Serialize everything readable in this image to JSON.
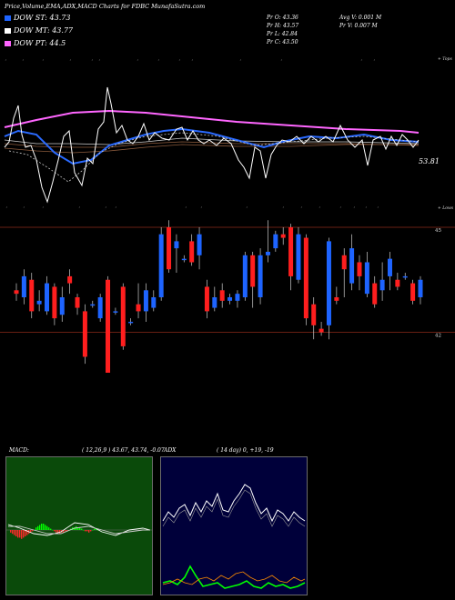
{
  "title": "Price,Volume,EMA,ADX,MACD Charts for FDBC MunafaSutra.com",
  "legend": [
    {
      "label": "DOW ST: 43.73",
      "color": "#1e64ff"
    },
    {
      "label": "DOW MT: 43.77",
      "color": "#ffffff"
    },
    {
      "label": "DOW PT: 44.5",
      "color": "#ff64ff"
    }
  ],
  "stats": {
    "pr_o": "Pr  O: 43.36",
    "pr_h": "Pr  H: 43.57",
    "pr_l": "Pr  L: 42.84",
    "pr_c": "Pr  C: 43.50",
    "avg_v": "Avg V: 0.001 M",
    "pr_v": "Pr  V: 0.007 M"
  },
  "top_chart": {
    "upper_label": "+ Tops",
    "lower_label": "+ Lows",
    "price_label": "53.81",
    "colors": {
      "price": "#ffffff",
      "ema_short": "#2a6aff",
      "ema_mid": "#8b5a3c",
      "ema_long": "#ff66ff",
      "ema_other": "#cccccc"
    }
  },
  "candle_chart": {
    "levels": [
      {
        "value": 45,
        "label": "45"
      },
      {
        "value": 42,
        "label": "42"
      },
      {
        "value": 40,
        "label": "40"
      }
    ],
    "up_color": "#1e64ff",
    "down_color": "#ff1e1e",
    "candles": [
      {
        "o": 43.2,
        "c": 43.1,
        "h": 43.4,
        "l": 42.9
      },
      {
        "o": 43.0,
        "c": 43.6,
        "h": 43.8,
        "l": 42.8
      },
      {
        "o": 43.5,
        "c": 42.6,
        "h": 43.7,
        "l": 42.4
      },
      {
        "o": 42.8,
        "c": 42.9,
        "h": 43.2,
        "l": 42.6
      },
      {
        "o": 42.6,
        "c": 43.4,
        "h": 43.6,
        "l": 42.5
      },
      {
        "o": 43.3,
        "c": 42.4,
        "h": 43.4,
        "l": 42.2
      },
      {
        "o": 42.5,
        "c": 43.0,
        "h": 43.3,
        "l": 42.3
      },
      {
        "o": 43.6,
        "c": 43.4,
        "h": 43.8,
        "l": 43.1
      },
      {
        "o": 43.0,
        "c": 42.7,
        "h": 43.1,
        "l": 42.5
      },
      {
        "o": 42.6,
        "c": 41.3,
        "h": 42.8,
        "l": 41.1
      },
      {
        "o": 42.8,
        "c": 42.8,
        "h": 42.9,
        "l": 42.7
      },
      {
        "o": 42.4,
        "c": 43.0,
        "h": 43.1,
        "l": 42.3
      },
      {
        "o": 43.5,
        "c": 40.0,
        "h": 43.6,
        "l": 39.9
      },
      {
        "o": 42.6,
        "c": 42.6,
        "h": 42.7,
        "l": 42.5
      },
      {
        "o": 43.3,
        "c": 41.6,
        "h": 43.4,
        "l": 41.5
      },
      {
        "o": 42.3,
        "c": 42.3,
        "h": 42.4,
        "l": 42.2
      },
      {
        "o": 42.8,
        "c": 42.6,
        "h": 43.4,
        "l": 42.4
      },
      {
        "o": 42.6,
        "c": 43.2,
        "h": 43.4,
        "l": 42.3
      },
      {
        "o": 42.7,
        "c": 43.0,
        "h": 43.2,
        "l": 42.6
      },
      {
        "o": 43.0,
        "c": 44.8,
        "h": 45.0,
        "l": 42.9
      },
      {
        "o": 45.0,
        "c": 43.8,
        "h": 45.2,
        "l": 43.7
      },
      {
        "o": 44.4,
        "c": 44.6,
        "h": 44.8,
        "l": 43.7
      },
      {
        "o": 44.1,
        "c": 44.1,
        "h": 44.2,
        "l": 44.0
      },
      {
        "o": 44.6,
        "c": 44.0,
        "h": 44.8,
        "l": 43.9
      },
      {
        "o": 44.2,
        "c": 44.8,
        "h": 45.0,
        "l": 43.8
      },
      {
        "o": 43.3,
        "c": 42.6,
        "h": 43.5,
        "l": 42.4
      },
      {
        "o": 42.7,
        "c": 43.0,
        "h": 43.3,
        "l": 42.6
      },
      {
        "o": 43.2,
        "c": 42.9,
        "h": 43.4,
        "l": 42.7
      },
      {
        "o": 42.9,
        "c": 43.0,
        "h": 43.1,
        "l": 42.8
      },
      {
        "o": 42.9,
        "c": 43.1,
        "h": 43.2,
        "l": 42.7
      },
      {
        "o": 43.0,
        "c": 44.2,
        "h": 44.3,
        "l": 42.9
      },
      {
        "o": 44.2,
        "c": 43.3,
        "h": 44.3,
        "l": 42.7
      },
      {
        "o": 43.0,
        "c": 44.2,
        "h": 44.4,
        "l": 42.8
      },
      {
        "o": 44.2,
        "c": 44.3,
        "h": 45.2,
        "l": 44.0
      },
      {
        "o": 44.4,
        "c": 44.8,
        "h": 44.9,
        "l": 44.3
      },
      {
        "o": 44.8,
        "c": 44.7,
        "h": 45.0,
        "l": 44.5
      },
      {
        "o": 45.0,
        "c": 43.6,
        "h": 45.1,
        "l": 43.2
      },
      {
        "o": 43.5,
        "c": 44.8,
        "h": 45.0,
        "l": 43.4
      },
      {
        "o": 44.7,
        "c": 42.4,
        "h": 44.8,
        "l": 42.2
      },
      {
        "o": 42.8,
        "c": 42.2,
        "h": 43.0,
        "l": 41.8
      },
      {
        "o": 42.1,
        "c": 42.0,
        "h": 42.3,
        "l": 41.9
      },
      {
        "o": 42.2,
        "c": 44.6,
        "h": 44.7,
        "l": 41.8
      },
      {
        "o": 43.0,
        "c": 42.9,
        "h": 43.3,
        "l": 42.8
      },
      {
        "o": 44.2,
        "c": 43.8,
        "h": 44.4,
        "l": 43.0
      },
      {
        "o": 43.4,
        "c": 44.4,
        "h": 44.8,
        "l": 43.2
      },
      {
        "o": 44.0,
        "c": 43.6,
        "h": 44.2,
        "l": 43.2
      },
      {
        "o": 43.1,
        "c": 44.0,
        "h": 44.3,
        "l": 43.0
      },
      {
        "o": 43.4,
        "c": 42.8,
        "h": 43.6,
        "l": 42.7
      },
      {
        "o": 43.2,
        "c": 43.5,
        "h": 44.0,
        "l": 42.9
      },
      {
        "o": 43.6,
        "c": 44.1,
        "h": 44.3,
        "l": 43.2
      },
      {
        "o": 43.5,
        "c": 43.3,
        "h": 43.7,
        "l": 43.2
      },
      {
        "o": 43.6,
        "c": 43.6,
        "h": 43.7,
        "l": 43.5
      },
      {
        "o": 43.4,
        "c": 42.9,
        "h": 43.5,
        "l": 42.8
      },
      {
        "o": 43.0,
        "c": 43.5,
        "h": 43.6,
        "l": 42.8
      }
    ]
  },
  "macd": {
    "label": "MACD:",
    "values": "( 12,26,9 ) 43.67, 43.74, -0.07"
  },
  "adx": {
    "label": "ADX",
    "values": "( 14  day) 0, +19, -19"
  }
}
